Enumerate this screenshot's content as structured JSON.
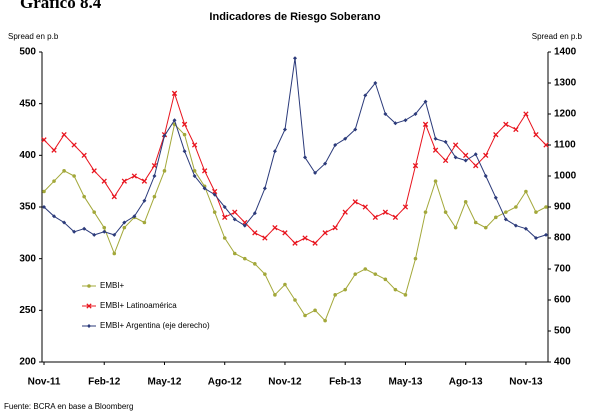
{
  "chart_data": {
    "type": "line",
    "figure_label": "Gráfico 8.4",
    "title": "Indicadores de Riesgo Soberano",
    "y_label": "Spread en p.b",
    "y2_label": "Spread en p.b",
    "source": "Fuente: BCRA en base a Bloomberg",
    "categories": [
      "Nov-11",
      null,
      null,
      null,
      null,
      null,
      "Feb-12",
      null,
      null,
      null,
      null,
      null,
      "May-12",
      null,
      null,
      null,
      null,
      null,
      "Ago-12",
      null,
      null,
      null,
      null,
      null,
      "Nov-12",
      null,
      null,
      null,
      null,
      null,
      "Feb-13",
      null,
      null,
      null,
      null,
      null,
      "May-13",
      null,
      null,
      null,
      null,
      null,
      "Ago-13",
      null,
      null,
      null,
      null,
      null,
      "Nov-13",
      null,
      null
    ],
    "ylim": [
      200,
      500
    ],
    "yticks": [
      200,
      250,
      300,
      350,
      400,
      450,
      500
    ],
    "y2lim": [
      400,
      1400
    ],
    "y2ticks": [
      400,
      500,
      600,
      700,
      800,
      900,
      1000,
      1100,
      1200,
      1300,
      1400
    ],
    "grid": false,
    "legend": "lower left",
    "series": [
      {
        "name": "EMBI+",
        "color": "#a3a83a",
        "marker": "circle",
        "values": [
          365,
          375,
          385,
          380,
          360,
          345,
          330,
          305,
          330,
          340,
          335,
          360,
          385,
          430,
          420,
          385,
          370,
          345,
          320,
          305,
          300,
          295,
          285,
          265,
          275,
          260,
          245,
          250,
          240,
          265,
          270,
          285,
          290,
          285,
          280,
          270,
          265,
          300,
          345,
          375,
          345,
          330,
          355,
          335,
          330,
          340,
          345,
          350,
          365,
          345,
          350
        ]
      },
      {
        "name": "EMBI+ Latinoamérica",
        "color": "#e8141e",
        "marker": "x",
        "values": [
          415,
          405,
          420,
          410,
          400,
          385,
          375,
          360,
          375,
          380,
          375,
          390,
          420,
          460,
          430,
          410,
          385,
          365,
          340,
          345,
          335,
          325,
          320,
          330,
          325,
          315,
          320,
          315,
          325,
          330,
          345,
          355,
          350,
          340,
          345,
          340,
          350,
          390,
          430,
          405,
          395,
          410,
          400,
          390,
          400,
          420,
          430,
          425,
          440,
          420,
          410
        ]
      },
      {
        "name": "EMBI+ Argentina (eje derecho)",
        "color": "#2b3a7a",
        "marker": "diamond",
        "axis": "y2",
        "values": [
          900,
          870,
          850,
          820,
          830,
          810,
          820,
          810,
          850,
          870,
          920,
          1000,
          1130,
          1180,
          1080,
          1000,
          960,
          940,
          900,
          860,
          840,
          880,
          960,
          1080,
          1150,
          1380,
          1060,
          1010,
          1040,
          1100,
          1120,
          1150,
          1260,
          1300,
          1200,
          1170,
          1180,
          1200,
          1240,
          1120,
          1110,
          1060,
          1050,
          1070,
          1000,
          930,
          860,
          840,
          830,
          800,
          810
        ]
      }
    ]
  }
}
